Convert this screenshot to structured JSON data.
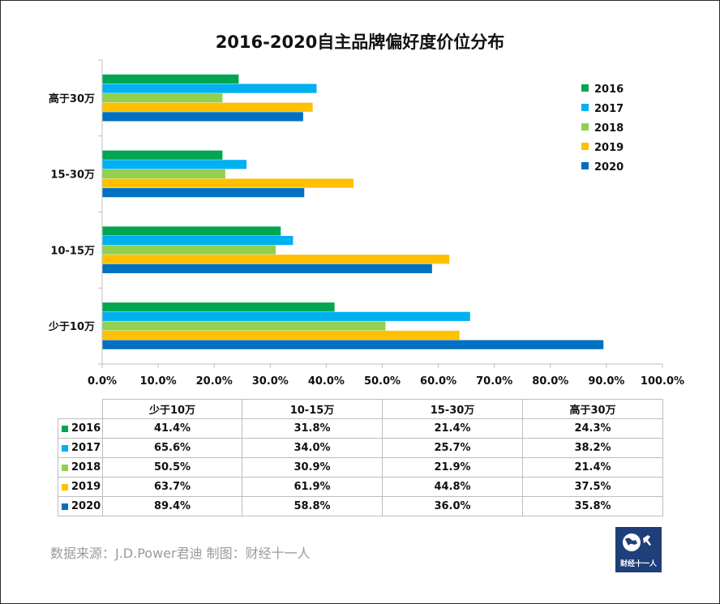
{
  "chart_data": {
    "type": "bar",
    "orientation": "horizontal",
    "title": "2016-2020自主品牌偏好度价位分布",
    "categories": [
      "高于30万",
      "15-30万",
      "10-15万",
      "少于10万"
    ],
    "series": [
      {
        "name": "2016",
        "color": "#00a651",
        "values": [
          24.3,
          21.4,
          31.8,
          41.4
        ]
      },
      {
        "name": "2017",
        "color": "#00b0f0",
        "values": [
          38.2,
          25.7,
          34.0,
          65.6
        ]
      },
      {
        "name": "2018",
        "color": "#92d050",
        "values": [
          21.4,
          21.9,
          30.9,
          50.5
        ]
      },
      {
        "name": "2019",
        "color": "#ffc000",
        "values": [
          37.5,
          44.8,
          61.9,
          63.7
        ]
      },
      {
        "name": "2020",
        "color": "#0070c0",
        "values": [
          35.8,
          36.0,
          58.8,
          89.4
        ]
      }
    ],
    "xlim": [
      0,
      100
    ],
    "xticks": [
      "0.0%",
      "10.0%",
      "20.0%",
      "30.0%",
      "40.0%",
      "50.0%",
      "60.0%",
      "70.0%",
      "80.0%",
      "90.0%",
      "100.0%"
    ],
    "legend_position": "top-right",
    "grid": false
  },
  "table": {
    "headers": [
      "少于10万",
      "10-15万",
      "15-30万",
      "高于30万"
    ],
    "rows": [
      {
        "label": "2016",
        "color": "#00a651",
        "cells": [
          "41.4%",
          "31.8%",
          "21.4%",
          "24.3%"
        ]
      },
      {
        "label": "2017",
        "color": "#00b0f0",
        "cells": [
          "65.6%",
          "34.0%",
          "25.7%",
          "38.2%"
        ]
      },
      {
        "label": "2018",
        "color": "#92d050",
        "cells": [
          "50.5%",
          "30.9%",
          "21.9%",
          "21.4%"
        ]
      },
      {
        "label": "2019",
        "color": "#ffc000",
        "cells": [
          "63.7%",
          "61.9%",
          "44.8%",
          "37.5%"
        ]
      },
      {
        "label": "2020",
        "color": "#0070c0",
        "cells": [
          "89.4%",
          "58.8%",
          "36.0%",
          "35.8%"
        ]
      }
    ]
  },
  "footer": {
    "source": "数据来源：J.D.Power君迪    制图：财经十一人",
    "logo_text": "财经十一人",
    "logo_color": "#1f3f7a"
  }
}
